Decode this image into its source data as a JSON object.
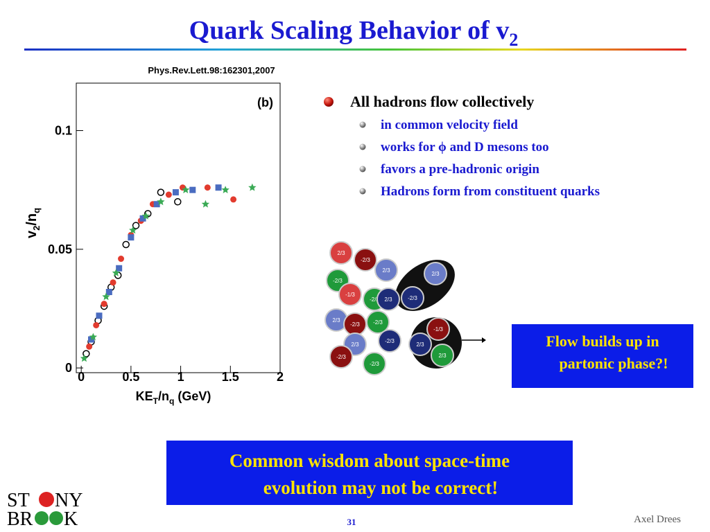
{
  "title": {
    "main": "Quark Scaling Behavior of v",
    "sub": "2"
  },
  "chart_data": {
    "type": "scatter",
    "citation": "Phys.Rev.Lett.98:162301,2007",
    "panel_label": "(b)",
    "x_label": {
      "parts": [
        "KE",
        "T",
        "/n",
        "q",
        " (GeV)"
      ]
    },
    "y_label": {
      "parts": [
        "v",
        "2",
        "/n",
        "q"
      ]
    },
    "xlim": [
      -0.05,
      2.0
    ],
    "ylim": [
      -0.002,
      0.12
    ],
    "xticks": [
      0,
      0.5,
      1,
      1.5,
      2
    ],
    "yticks": [
      0,
      0.05,
      0.1
    ],
    "series": [
      {
        "marker": "open-circle",
        "color": "#000000",
        "x": [
          0.05,
          0.1,
          0.17,
          0.23,
          0.3,
          0.37,
          0.45,
          0.55,
          0.67,
          0.8,
          0.97
        ],
        "values": [
          0.006,
          0.011,
          0.02,
          0.026,
          0.034,
          0.039,
          0.052,
          0.06,
          0.065,
          0.074,
          0.07
        ]
      },
      {
        "marker": "circle",
        "color": "#e23b2e",
        "x": [
          0.08,
          0.15,
          0.23,
          0.32,
          0.4,
          0.5,
          0.6,
          0.72,
          0.88,
          1.02,
          1.27,
          1.53
        ],
        "values": [
          0.009,
          0.018,
          0.027,
          0.036,
          0.046,
          0.056,
          0.062,
          0.069,
          0.073,
          0.076,
          0.076,
          0.071
        ]
      },
      {
        "marker": "square",
        "color": "#4a6cc0",
        "x": [
          0.1,
          0.18,
          0.28,
          0.38,
          0.5,
          0.62,
          0.76,
          0.95,
          1.12,
          1.38
        ],
        "values": [
          0.012,
          0.022,
          0.032,
          0.042,
          0.055,
          0.063,
          0.069,
          0.074,
          0.075,
          0.076
        ]
      },
      {
        "marker": "star",
        "color": "#3aaa55",
        "x": [
          0.03,
          0.12,
          0.25,
          0.35,
          0.52,
          0.65,
          0.8,
          1.05,
          1.25,
          1.45,
          1.72
        ],
        "values": [
          0.004,
          0.013,
          0.03,
          0.04,
          0.058,
          0.064,
          0.07,
          0.075,
          0.069,
          0.075,
          0.076
        ]
      }
    ]
  },
  "bullets": {
    "main": "All hadrons flow collectively",
    "sub": [
      "in common velocity field",
      "works for ϕ and D mesons too",
      "favors a pre-hadronic origin",
      "Hadrons form from constituent quarks"
    ]
  },
  "quark_labels": [
    "2/3",
    "-2/3",
    "2/3",
    "-2/3",
    "-1/3",
    "-2/3",
    "2/3",
    "-2/3",
    "2/3",
    "2/3",
    "-2/3",
    "-2/3",
    "-2/3",
    "2/3",
    "-2/3",
    "-2/3",
    "-1/3",
    "2/3",
    "2/3"
  ],
  "flow_box": [
    "Flow builds up in",
    "partonic phase?!"
  ],
  "wisdom_box": [
    "Common wisdom about space-time",
    "evolution may not be correct!"
  ],
  "footer": {
    "page": "31",
    "author": "Axel Drees"
  },
  "logo": {
    "line1": [
      "ST",
      "NY"
    ],
    "line2": [
      "BR",
      "K"
    ]
  }
}
